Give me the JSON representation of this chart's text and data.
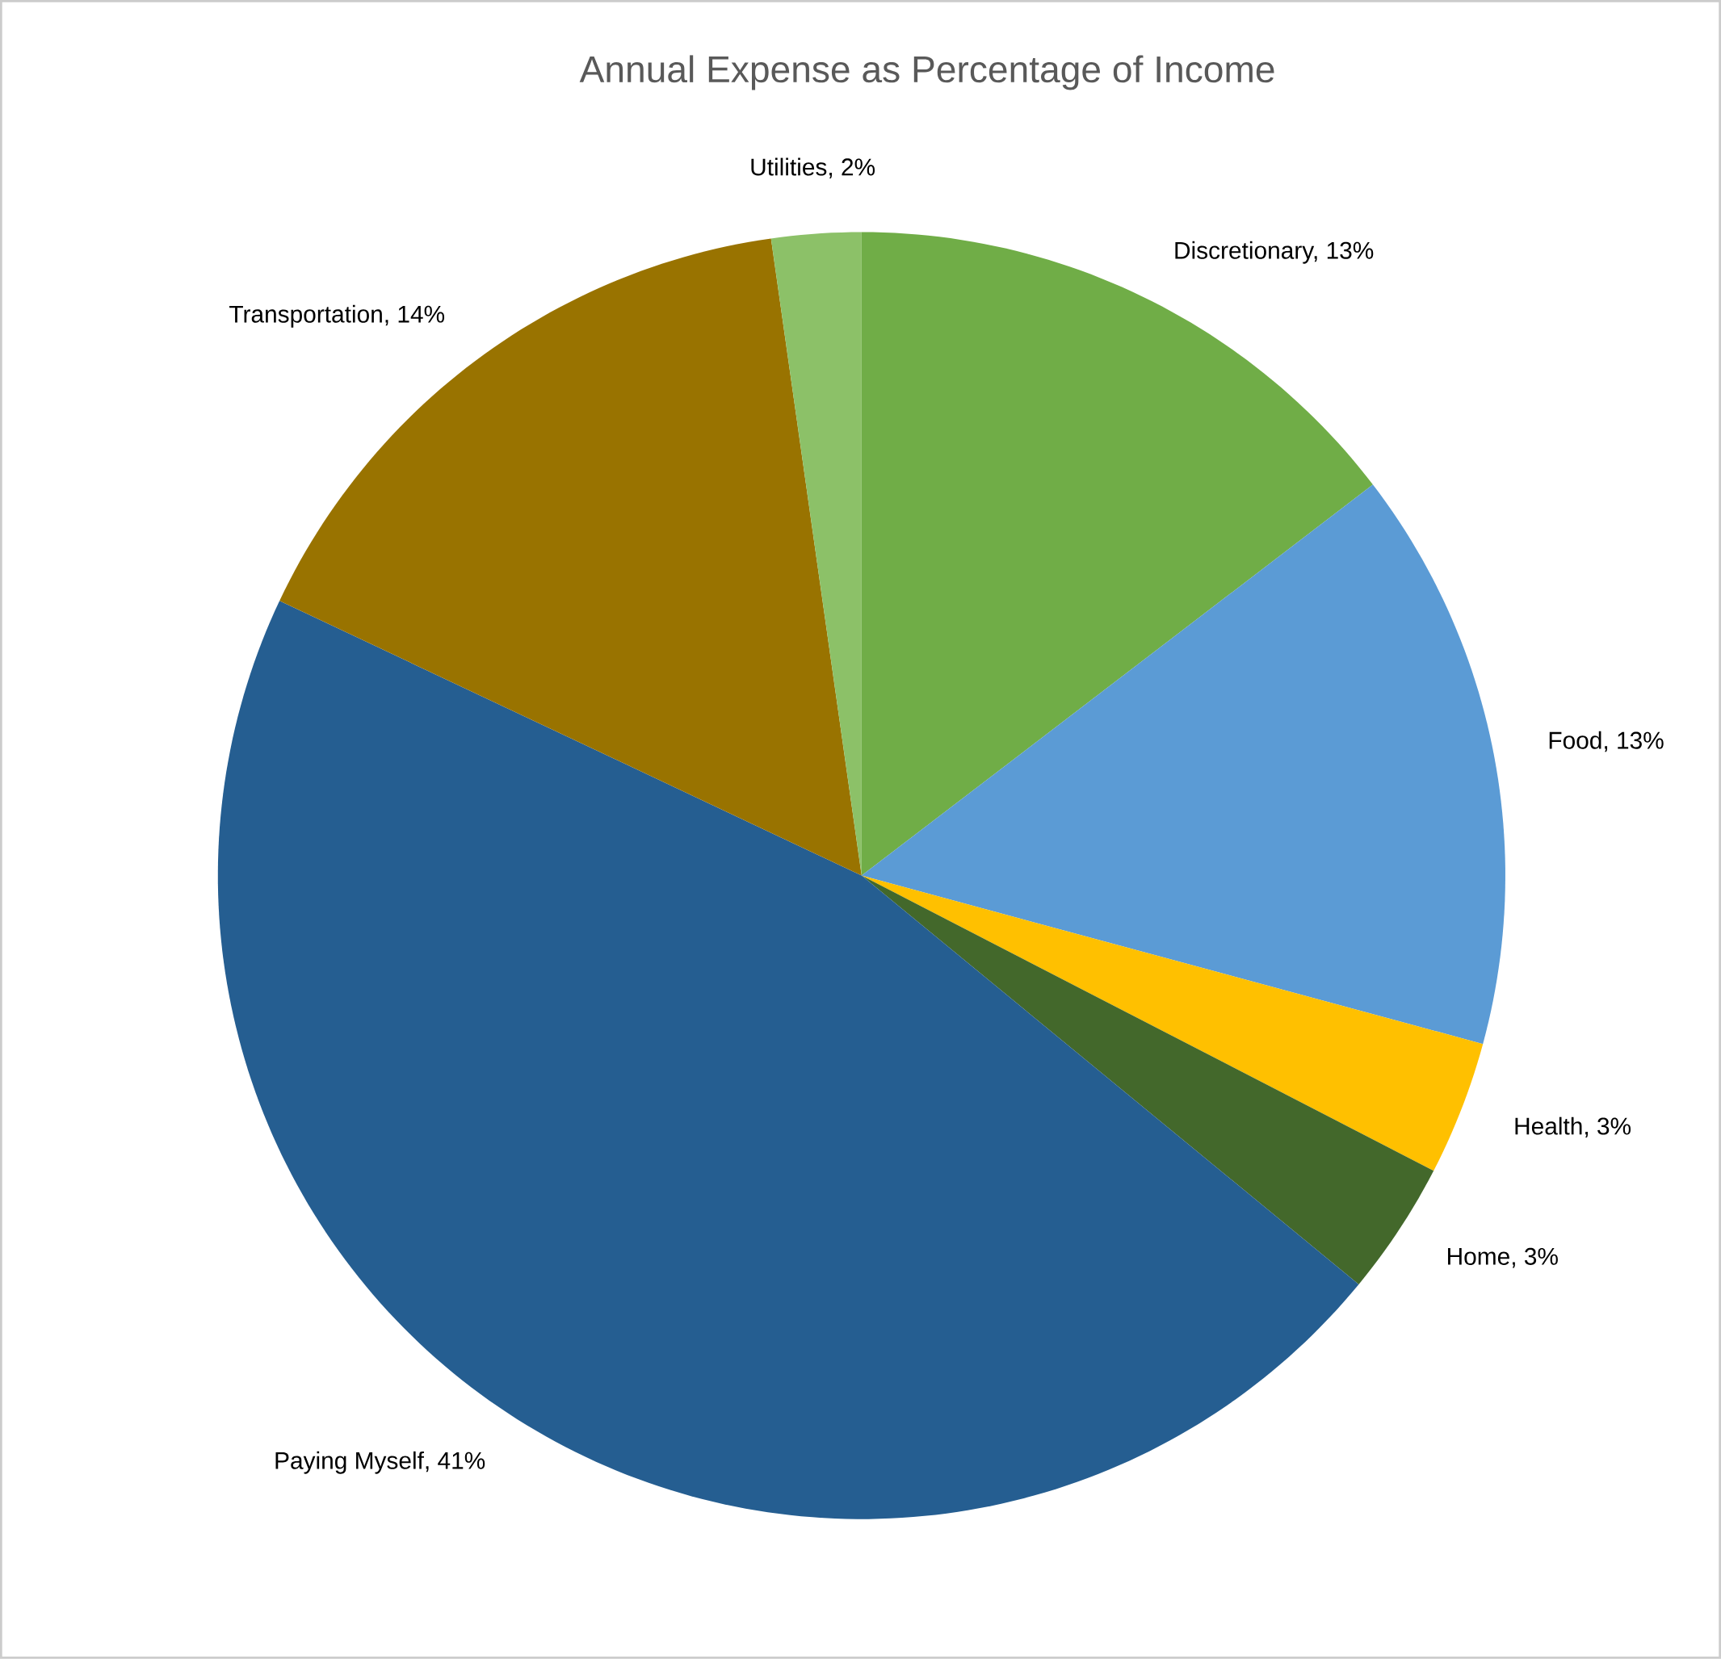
{
  "chart_data": {
    "type": "pie",
    "title": "Annual Expense as Percentage of Income",
    "categories": [
      null,
      null,
      null,
      null,
      null,
      null,
      null
    ],
    "values": [
      13,
      13,
      3,
      3,
      41,
      14,
      2
    ],
    "value_labels": [
      "Discretionary, 13%",
      "Food, 13%",
      "Health, 3%",
      "Home, 3%",
      "Paying Myself, 41%",
      "Transportation, 14%",
      "Utilities, 2%"
    ],
    "colors": [
      "#70ad47",
      "#5b9bd5",
      "#ffc000",
      "#43682b",
      "#255e91",
      "#997300",
      "#8cc168"
    ]
  }
}
